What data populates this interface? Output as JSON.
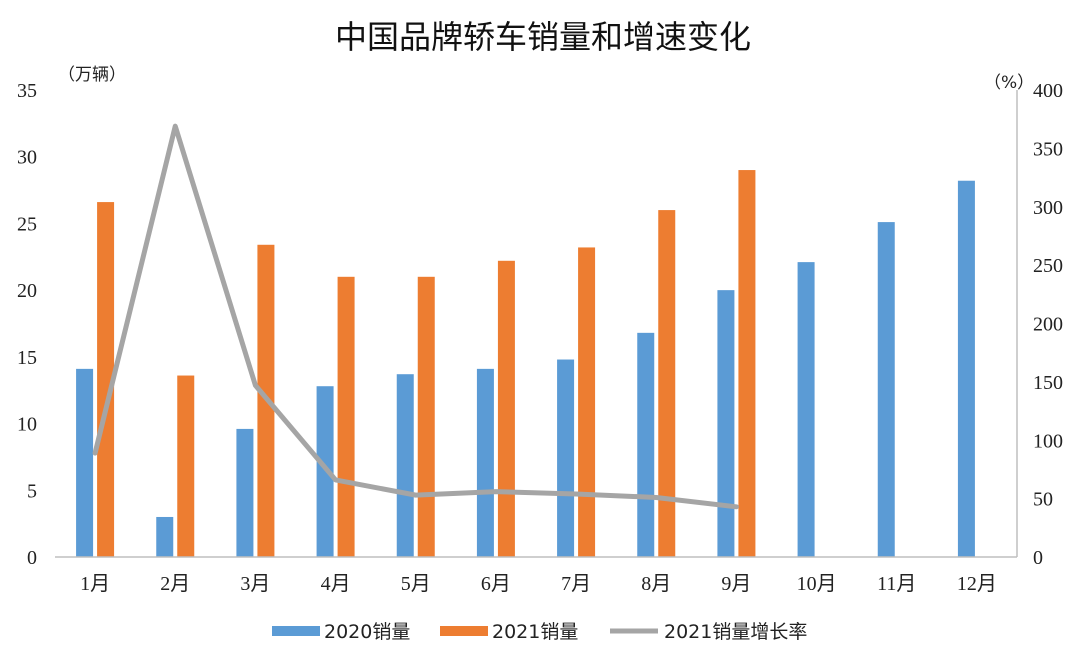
{
  "chart_data": {
    "type": "bar",
    "title": "中国品牌轿车销量和增速变化",
    "left_unit": "（万辆）",
    "right_unit": "（%）",
    "categories": [
      "1月",
      "2月",
      "3月",
      "4月",
      "5月",
      "6月",
      "7月",
      "8月",
      "9月",
      "10月",
      "11月",
      "12月"
    ],
    "left_axis": {
      "ylim": [
        0,
        35
      ],
      "ticks": [
        "0",
        "5",
        "10",
        "15",
        "20",
        "25",
        "30",
        "35"
      ]
    },
    "right_axis": {
      "ylim": [
        0,
        400
      ],
      "ticks": [
        "0",
        "50",
        "100",
        "150",
        "200",
        "250",
        "300",
        "350",
        "400"
      ]
    },
    "series": [
      {
        "name": "2020销量",
        "type": "bar",
        "axis": "left",
        "color": "#5b9bd5",
        "values": [
          14.1,
          3.0,
          9.6,
          12.8,
          13.7,
          14.1,
          14.8,
          16.8,
          20.0,
          22.1,
          25.1,
          28.2
        ]
      },
      {
        "name": "2021销量",
        "type": "bar",
        "axis": "left",
        "color": "#ed7d31",
        "values": [
          26.6,
          13.6,
          23.4,
          21.0,
          21.0,
          22.2,
          23.2,
          26.0,
          29.0,
          null,
          null,
          null
        ]
      },
      {
        "name": "2021销量增长率",
        "type": "line",
        "axis": "right",
        "color": "#a5a5a5",
        "values": [
          89,
          369,
          147,
          66,
          53,
          56,
          54,
          51,
          43,
          null,
          null,
          null
        ]
      }
    ],
    "legend_position": "bottom",
    "grid": false
  }
}
